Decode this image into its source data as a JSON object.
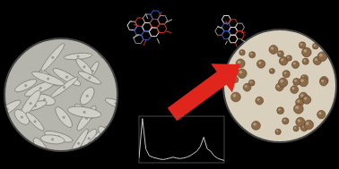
{
  "chart_data": {
    "type": "line",
    "x": [
      200,
      220,
      240,
      260,
      280,
      300,
      320,
      340,
      360,
      380,
      400,
      420,
      440,
      460,
      480,
      500,
      520,
      540,
      560,
      580,
      600,
      620,
      640,
      660,
      680,
      700
    ],
    "values": [
      0.1,
      0.95,
      0.3,
      0.15,
      0.12,
      0.1,
      0.08,
      0.07,
      0.08,
      0.1,
      0.12,
      0.1,
      0.09,
      0.1,
      0.12,
      0.15,
      0.2,
      0.25,
      0.35,
      0.55,
      0.3,
      0.25,
      0.15,
      0.1,
      0.07,
      0.05
    ],
    "color": "#c8c8c8",
    "xlim": [
      200,
      700
    ],
    "ylim": [
      0,
      1
    ],
    "tick_labels": false,
    "grid": false
  }
}
